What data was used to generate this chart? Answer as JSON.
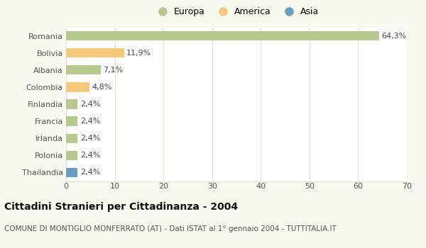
{
  "categories": [
    "Romania",
    "Bolivia",
    "Albania",
    "Colombia",
    "Finlandia",
    "Francia",
    "Irlanda",
    "Polonia",
    "Thailandia"
  ],
  "values": [
    64.3,
    11.9,
    7.1,
    4.8,
    2.4,
    2.4,
    2.4,
    2.4,
    2.4
  ],
  "labels": [
    "64,3%",
    "11,9%",
    "7,1%",
    "4,8%",
    "2,4%",
    "2,4%",
    "2,4%",
    "2,4%",
    "2,4%"
  ],
  "colors": [
    "#b5c98e",
    "#f5c97a",
    "#b5c98e",
    "#f5c97a",
    "#b5c98e",
    "#b5c98e",
    "#b5c98e",
    "#b5c98e",
    "#6b9dc2"
  ],
  "legend_labels": [
    "Europa",
    "America",
    "Asia"
  ],
  "legend_colors": [
    "#b5c98e",
    "#f5c97a",
    "#6b9dc2"
  ],
  "title": "Cittadini Stranieri per Cittadinanza - 2004",
  "subtitle": "COMUNE DI MONTIGLIO MONFERRATO (AT) - Dati ISTAT al 1° gennaio 2004 - TUTTITALIA.IT",
  "xlim": [
    0,
    70
  ],
  "xticks": [
    0,
    10,
    20,
    30,
    40,
    50,
    60,
    70
  ],
  "bg_color": "#f8f8f0",
  "plot_bg_color": "#ffffff",
  "grid_color": "#e0e0d0",
  "title_fontsize": 10,
  "subtitle_fontsize": 7.5,
  "tick_fontsize": 8,
  "label_fontsize": 8,
  "legend_fontsize": 9
}
